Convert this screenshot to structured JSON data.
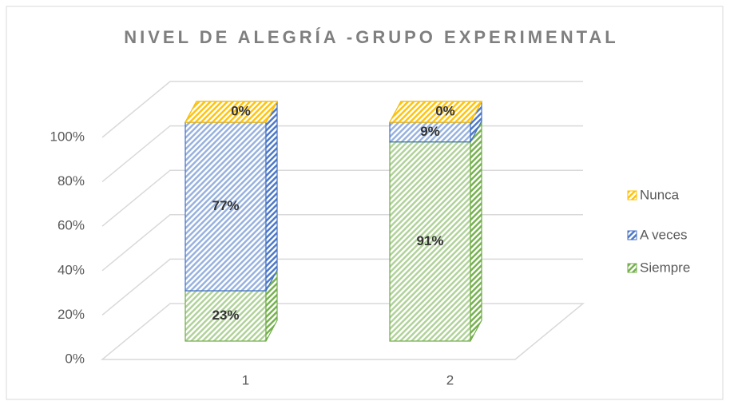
{
  "chart_data": {
    "type": "bar3d_stacked",
    "title": "NIVEL DE ALEGRÍA -GRUPO EXPERIMENTAL",
    "categories": [
      "1",
      "2"
    ],
    "series": [
      {
        "name": "Siempre",
        "color": "#70ad47",
        "values": [
          23,
          91
        ],
        "value_labels": [
          "23%",
          "91%"
        ]
      },
      {
        "name": "A veces",
        "color": "#4472c4",
        "values": [
          77,
          9
        ],
        "value_labels": [
          "77%",
          "9%"
        ]
      },
      {
        "name": "Nunca",
        "color": "#ffc000",
        "values": [
          0,
          0
        ],
        "value_labels": [
          "0%",
          "0%"
        ]
      }
    ],
    "ylim": [
      0,
      100
    ],
    "yticks": [
      {
        "value": 0,
        "label": "0%"
      },
      {
        "value": 20,
        "label": "20%"
      },
      {
        "value": 40,
        "label": "40%"
      },
      {
        "value": 60,
        "label": "60%"
      },
      {
        "value": 80,
        "label": "80%"
      },
      {
        "value": 100,
        "label": "100%"
      }
    ],
    "grid": true,
    "legend": "right"
  }
}
